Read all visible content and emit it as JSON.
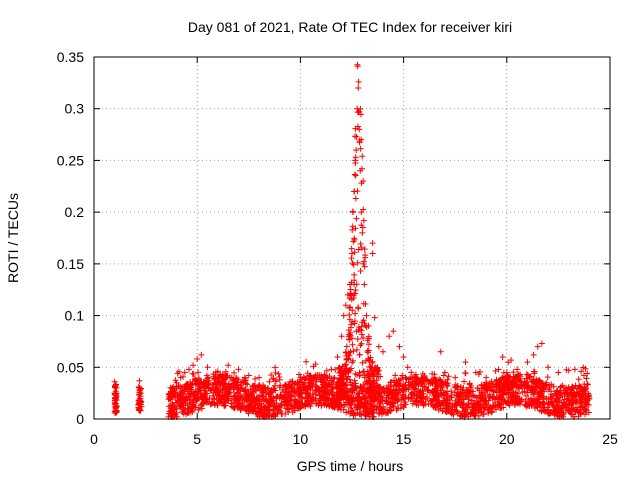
{
  "chart_data": {
    "type": "scatter",
    "title": "Day 081 of 2021, Rate Of TEC Index for receiver kiri",
    "xlabel": "GPS time / hours",
    "ylabel": "ROTI / TECUs",
    "xlim": [
      0,
      25
    ],
    "ylim": [
      0,
      0.35
    ],
    "x_ticks": [
      0,
      5,
      10,
      15,
      20,
      25
    ],
    "x_tick_labels": [
      "0",
      "5",
      "10",
      "15",
      "20",
      "25"
    ],
    "y_ticks": [
      0,
      0.05,
      0.1,
      0.15,
      0.2,
      0.25,
      0.3,
      0.35
    ],
    "y_tick_labels": [
      "0",
      "0.05",
      "0.1",
      "0.15",
      "0.2",
      "0.25",
      "0.3",
      "0.35"
    ],
    "grid": true,
    "marker": "+",
    "series": [
      {
        "color": "#ff0000",
        "points": [
          [
            1.0,
            0.036
          ],
          [
            1.0,
            0.025
          ],
          [
            1.05,
            0.02
          ],
          [
            1.05,
            0.015
          ],
          [
            1.1,
            0.012
          ],
          [
            1.1,
            0.008
          ],
          [
            1.05,
            0.03
          ],
          [
            1.1,
            0.022
          ],
          [
            2.2,
            0.037
          ],
          [
            2.2,
            0.028
          ],
          [
            2.25,
            0.022
          ],
          [
            2.2,
            0.018
          ],
          [
            2.25,
            0.014
          ],
          [
            2.3,
            0.012
          ],
          [
            2.2,
            0.01
          ],
          [
            3.8,
            0.03
          ],
          [
            4.0,
            0.035
          ],
          [
            4.2,
            0.04
          ],
          [
            4.4,
            0.045
          ],
          [
            4.6,
            0.048
          ],
          [
            4.8,
            0.052
          ],
          [
            5.0,
            0.058
          ],
          [
            5.2,
            0.062
          ],
          [
            5.5,
            0.05
          ],
          [
            6.0,
            0.046
          ],
          [
            6.5,
            0.052
          ],
          [
            7.0,
            0.048
          ],
          [
            7.5,
            0.042
          ],
          [
            8.0,
            0.04
          ],
          [
            8.5,
            0.036
          ],
          [
            9.0,
            0.038
          ],
          [
            9.5,
            0.036
          ],
          [
            10.0,
            0.04
          ],
          [
            10.5,
            0.042
          ],
          [
            11.0,
            0.04
          ],
          [
            11.5,
            0.048
          ],
          [
            11.8,
            0.06
          ],
          [
            12.0,
            0.08
          ],
          [
            12.1,
            0.1
          ],
          [
            12.2,
            0.11
          ],
          [
            12.3,
            0.12
          ],
          [
            12.4,
            0.13
          ],
          [
            12.5,
            0.16
          ],
          [
            12.55,
            0.2
          ],
          [
            12.6,
            0.22
          ],
          [
            12.65,
            0.25
          ],
          [
            12.7,
            0.26
          ],
          [
            12.75,
            0.3
          ],
          [
            12.8,
            0.32
          ],
          [
            12.82,
            0.326
          ],
          [
            12.85,
            0.28
          ],
          [
            12.9,
            0.24
          ],
          [
            12.95,
            0.2
          ],
          [
            13.0,
            0.18
          ],
          [
            13.05,
            0.15
          ],
          [
            13.1,
            0.13
          ],
          [
            13.2,
            0.1
          ],
          [
            13.3,
            0.09
          ],
          [
            13.5,
            0.17
          ],
          [
            13.5,
            0.16
          ],
          [
            13.6,
            0.098
          ],
          [
            13.8,
            0.07
          ],
          [
            14.0,
            0.065
          ],
          [
            14.3,
            0.08
          ],
          [
            14.5,
            0.085
          ],
          [
            14.8,
            0.07
          ],
          [
            15.0,
            0.06
          ],
          [
            15.2,
            0.05
          ],
          [
            15.5,
            0.04
          ],
          [
            16.0,
            0.038
          ],
          [
            16.5,
            0.04
          ],
          [
            16.8,
            0.065
          ],
          [
            17.0,
            0.045
          ],
          [
            17.5,
            0.04
          ],
          [
            18.0,
            0.055
          ],
          [
            18.5,
            0.045
          ],
          [
            19.0,
            0.04
          ],
          [
            19.5,
            0.038
          ],
          [
            19.8,
            0.06
          ],
          [
            20.0,
            0.045
          ],
          [
            20.5,
            0.048
          ],
          [
            21.0,
            0.055
          ],
          [
            21.3,
            0.062
          ],
          [
            21.5,
            0.07
          ],
          [
            21.7,
            0.073
          ],
          [
            22.0,
            0.05
          ],
          [
            22.5,
            0.045
          ],
          [
            23.0,
            0.047
          ],
          [
            23.3,
            0.048
          ],
          [
            23.6,
            0.046
          ],
          [
            23.9,
            0.044
          ]
        ]
      }
    ]
  }
}
